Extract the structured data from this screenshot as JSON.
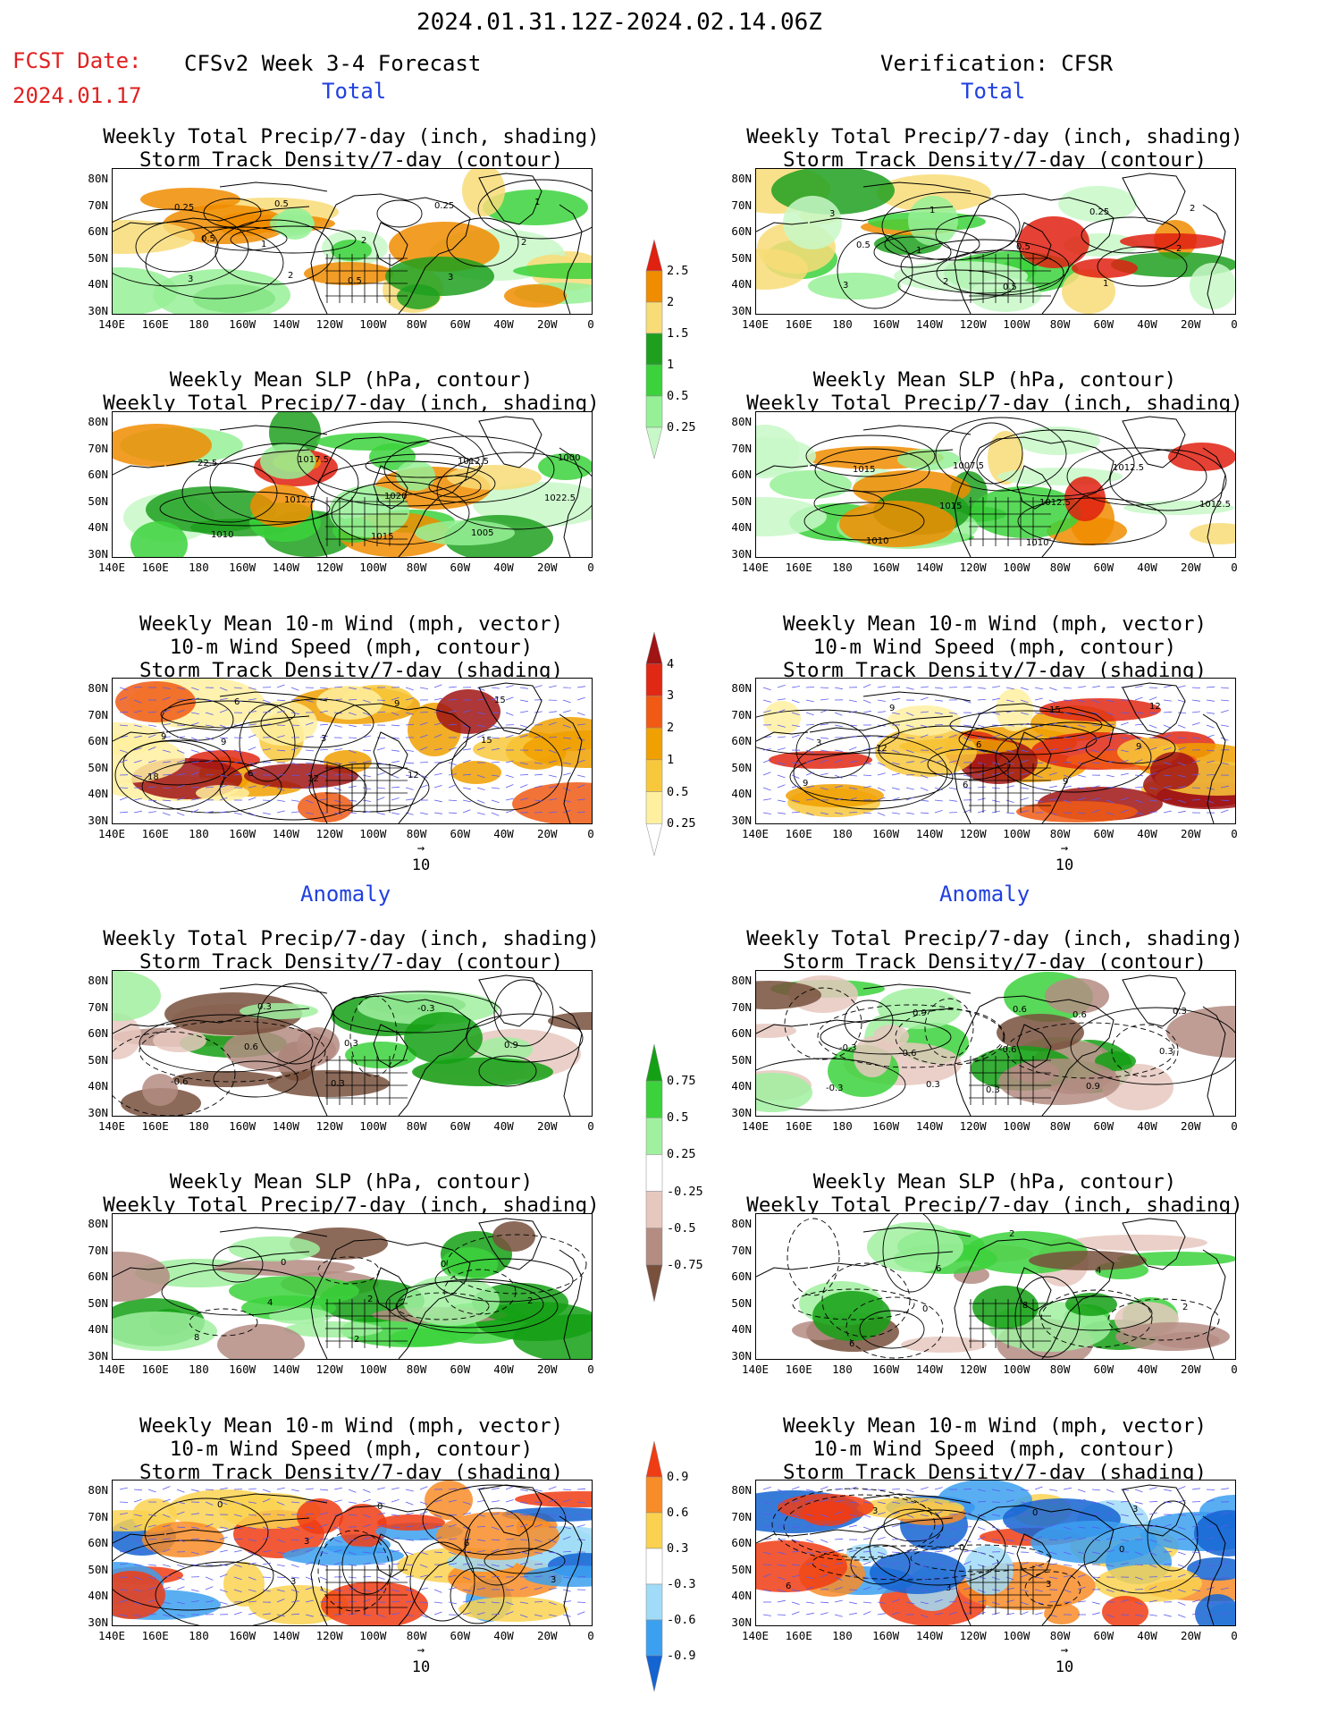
{
  "header": {
    "period": "2024.01.31.12Z-2024.02.14.06Z",
    "fcst_label": "FCST Date:",
    "fcst_date": "2024.01.17",
    "left_title": "CFSv2 Week 3-4 Forecast",
    "right_title": "Verification: CFSR",
    "total_label": "Total",
    "anomaly_label": "Anomaly"
  },
  "titles": {
    "precip_storm": [
      "Weekly Total Precip/7-day (inch, shading)",
      "Storm Track Density/7-day (contour)"
    ],
    "slp_precip": [
      "Weekly Mean SLP (hPa, contour)",
      "Weekly Total Precip/7-day (inch, shading)"
    ],
    "wind_storm": [
      "Weekly Mean 10-m Wind (mph, vector)",
      "10-m Wind Speed (mph, contour)",
      "Storm Track Density/7-day (shading)"
    ]
  },
  "axes": {
    "lat_ticks": [
      "80N",
      "70N",
      "60N",
      "50N",
      "40N",
      "30N"
    ],
    "lon_ticks": [
      "140E",
      "160E",
      "180",
      "160W",
      "140W",
      "120W",
      "100W",
      "80W",
      "60W",
      "40W",
      "20W",
      "0"
    ]
  },
  "vector_ref": "10",
  "colorbars": {
    "total_precip": {
      "labels": [
        "2.5",
        "2",
        "1.5",
        "1",
        "0.5",
        "0.25"
      ],
      "colors": [
        "#e02010",
        "#f08c00",
        "#f8dc78",
        "#1ea01e",
        "#3cd23c",
        "#96f096",
        "#c8f8c8"
      ]
    },
    "total_storm": {
      "labels": [
        "4",
        "3",
        "2",
        "1",
        "0.5",
        "0.25"
      ],
      "colors": [
        "#a01414",
        "#e02814",
        "#f05a14",
        "#f0a000",
        "#f8c83c",
        "#fff0a0",
        "#ffffff"
      ]
    },
    "anom_precip": {
      "labels": [
        "0.75",
        "0.5",
        "0.25",
        "-0.25",
        "-0.5",
        "-0.75"
      ],
      "colors": [
        "#14a014",
        "#3cd23c",
        "#a0f0a0",
        "#ffffff",
        "#e6c8be",
        "#b48c82",
        "#78503c"
      ]
    },
    "anom_storm": {
      "labels": [
        "0.9",
        "0.6",
        "0.3",
        "-0.3",
        "-0.6",
        "-0.9"
      ],
      "colors": [
        "#f03c14",
        "#f88c28",
        "#fad250",
        "#ffffff",
        "#a0dcf8",
        "#3ca0f0",
        "#1464d2"
      ]
    }
  },
  "panels": {
    "p1": {
      "labels": [
        "0.25",
        "1",
        "0.5",
        "0.25",
        "2",
        "3",
        "0.5",
        "2",
        "3",
        "1",
        "0.5",
        "2"
      ]
    },
    "p2": {
      "labels": [
        "3",
        "1",
        "0.5",
        "0.25",
        "2",
        "3",
        "1",
        "0.5",
        "1",
        "2",
        "0.5",
        "2"
      ]
    },
    "p3": {
      "labels": [
        "22.5",
        "1012.5",
        "1015",
        "1012.5",
        "1022.5",
        "1010",
        "1017.5",
        "1020",
        "1005",
        "1000"
      ]
    },
    "p4": {
      "labels": [
        "1015",
        "1015",
        "1010",
        "1012.5",
        "1012.5",
        "1010",
        "1007.5",
        "1012.5"
      ]
    },
    "p5": {
      "labels": [
        "9",
        "12",
        "9",
        "15",
        "18",
        "6",
        "3",
        "12",
        "15",
        "9",
        "6"
      ]
    },
    "p6": {
      "labels": [
        "12",
        "6",
        "15",
        "9",
        "9",
        "9",
        "6",
        "9",
        "12",
        "3"
      ]
    },
    "p7": {
      "labels": [
        "0.6",
        "0.3",
        "-0.3",
        "0.9",
        "-0.6",
        "0.3",
        "0.3"
      ]
    },
    "p8": {
      "labels": [
        "-0.6",
        "0.3",
        "0.6",
        "0.3",
        "-0.3",
        "0.9",
        "-0.6",
        "0.9",
        "0.3",
        "-0.3",
        "0.3",
        "0.6"
      ]
    },
    "p9": {
      "labels": [
        "4",
        "2",
        "0",
        "2",
        "8",
        "0",
        "2"
      ]
    },
    "p10": {
      "labels": [
        "0",
        "2",
        "4",
        "2",
        "6",
        "6",
        "8"
      ]
    },
    "p11": {
      "labels": [
        "3",
        "0",
        "6",
        "3",
        "0",
        "3"
      ]
    },
    "p12": {
      "labels": [
        "3",
        "0",
        "0",
        "6",
        "3",
        "0",
        "3",
        "3"
      ]
    }
  }
}
